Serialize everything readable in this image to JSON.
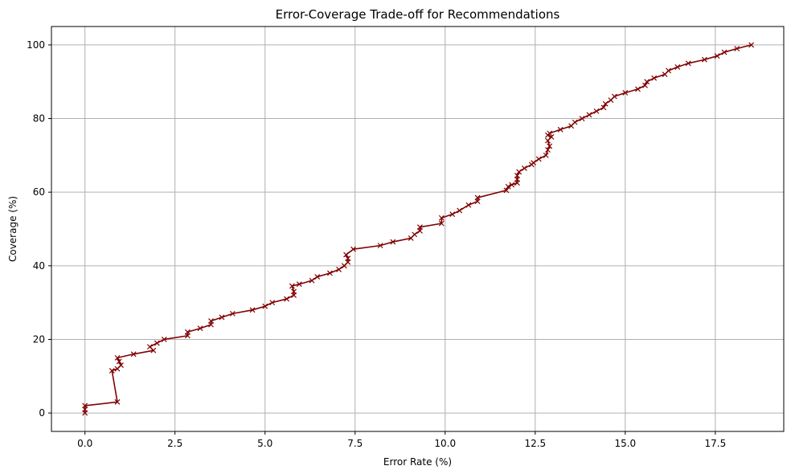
{
  "chart_data": {
    "type": "line",
    "title": "Error-Coverage Trade-off for Recommendations",
    "xlabel": "Error Rate (%)",
    "ylabel": "Coverage (%)",
    "xlim": [
      -0.93,
      19.4
    ],
    "ylim": [
      -5,
      105
    ],
    "xticks": [
      0.0,
      2.5,
      5.0,
      7.5,
      10.0,
      12.5,
      15.0,
      17.5
    ],
    "xtick_labels": [
      "0.0",
      "2.5",
      "5.0",
      "7.5",
      "10.0",
      "12.5",
      "15.0",
      "17.5"
    ],
    "yticks": [
      0,
      20,
      40,
      60,
      80,
      100
    ],
    "ytick_labels": [
      "0",
      "20",
      "40",
      "60",
      "80",
      "100"
    ],
    "grid": true,
    "marker": "x",
    "color": "#800000",
    "series": [
      {
        "x": [
          0.0,
          0.0,
          0.0,
          0.9,
          0.75,
          0.9,
          1.0,
          0.95,
          0.9,
          1.35,
          1.9,
          1.8,
          2.0,
          2.2,
          2.85,
          2.85,
          3.2,
          3.5,
          3.5,
          3.8,
          4.1,
          4.65,
          5.0,
          5.2,
          5.6,
          5.8,
          5.8,
          5.75,
          5.95,
          6.3,
          6.45,
          6.8,
          7.05,
          7.2,
          7.3,
          7.3,
          7.25,
          7.45,
          8.2,
          8.55,
          9.05,
          9.15,
          9.3,
          9.3,
          9.9,
          9.9,
          10.2,
          10.4,
          10.65,
          10.9,
          10.9,
          11.7,
          11.75,
          11.85,
          12.0,
          12.0,
          12.0,
          12.05,
          12.2,
          12.4,
          12.45,
          12.6,
          12.8,
          12.85,
          12.9,
          12.85,
          12.95,
          12.85,
          12.9,
          13.2,
          13.5,
          13.6,
          13.8,
          14.0,
          14.2,
          14.4,
          14.45,
          14.6,
          14.7,
          15.0,
          15.35,
          15.55,
          15.6,
          15.8,
          16.1,
          16.2,
          16.45,
          16.75,
          17.2,
          17.55,
          17.75,
          18.1,
          18.5
        ],
        "y": [
          0.0,
          1.0,
          2.0,
          3.0,
          11.5,
          12.0,
          13.0,
          14.0,
          15.0,
          16.0,
          17.0,
          18.0,
          19.0,
          20.0,
          21.0,
          22.0,
          23.0,
          24.0,
          25.0,
          26.0,
          27.0,
          28.0,
          29.0,
          30.0,
          31.0,
          32.0,
          33.0,
          34.5,
          35.0,
          36.0,
          37.0,
          38.0,
          39.0,
          40.0,
          41.0,
          42.0,
          43.0,
          44.5,
          45.5,
          46.5,
          47.5,
          48.5,
          49.5,
          50.5,
          51.5,
          53.0,
          54.0,
          55.0,
          56.5,
          57.5,
          58.5,
          60.5,
          61.5,
          62.0,
          62.5,
          63.5,
          64.5,
          65.5,
          66.5,
          67.5,
          68.0,
          69.0,
          70.0,
          71.5,
          72.5,
          74.0,
          75.0,
          75.5,
          76.0,
          77.0,
          78.0,
          79.0,
          80.0,
          81.0,
          82.0,
          83.0,
          84.0,
          85.0,
          86.0,
          87.0,
          88.0,
          89.0,
          90.0,
          91.0,
          92.0,
          93.0,
          94.0,
          95.0,
          96.0,
          97.0,
          98.0,
          99.0,
          100.0
        ]
      }
    ]
  }
}
